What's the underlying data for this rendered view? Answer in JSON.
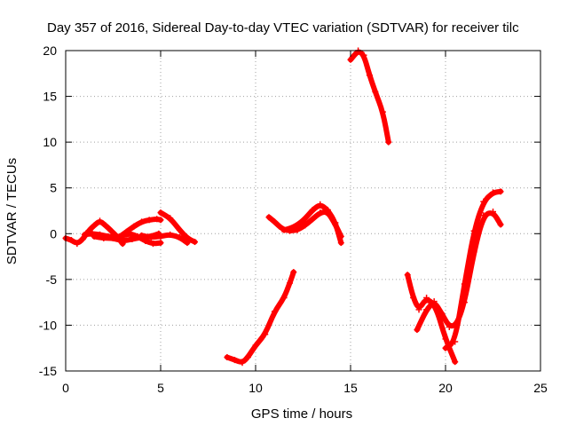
{
  "chart_data": {
    "type": "scatter",
    "title": "Day 357 of 2016, Sidereal Day-to-day VTEC variation (SDTVAR) for receiver tilc",
    "xlabel": "GPS time / hours",
    "ylabel": "SDTVAR / TECUs",
    "xlim": [
      0,
      25
    ],
    "ylim": [
      -15,
      20
    ],
    "xticks": [
      0,
      5,
      10,
      15,
      20,
      25
    ],
    "yticks": [
      -15,
      -10,
      -5,
      0,
      5,
      10,
      15,
      20
    ],
    "grid": true,
    "marker_color": "#ff0000",
    "series": [
      {
        "x": [
          0.0,
          0.3,
          0.6,
          0.9,
          1.2,
          1.5,
          1.8,
          2.1,
          2.4,
          2.7,
          3.0
        ],
        "y": [
          -0.5,
          -0.7,
          -1.1,
          -0.6,
          0.3,
          0.9,
          1.4,
          0.9,
          0.3,
          -0.3,
          -1.1
        ]
      },
      {
        "x": [
          1.0,
          1.4,
          1.8,
          2.2,
          2.6,
          3.0,
          3.4,
          3.8,
          4.2,
          4.6,
          5.0
        ],
        "y": [
          -0.1,
          0.0,
          -0.1,
          -0.3,
          -0.4,
          -0.2,
          0.0,
          -0.3,
          -0.8,
          -1.1,
          -1.0
        ]
      },
      {
        "x": [
          1.5,
          2.0,
          2.5,
          3.0,
          3.5,
          4.0,
          4.5,
          4.9
        ],
        "y": [
          -0.3,
          -0.5,
          -0.5,
          -0.8,
          -0.6,
          -0.4,
          -0.3,
          0.0
        ]
      },
      {
        "x": [
          2.8,
          3.2,
          3.6,
          4.0,
          4.4,
          4.8,
          5.0
        ],
        "y": [
          -0.4,
          0.2,
          0.8,
          1.3,
          1.5,
          1.6,
          1.5
        ]
      },
      {
        "x": [
          5.0,
          5.5,
          6.0,
          6.4,
          6.8
        ],
        "y": [
          2.3,
          1.7,
          0.4,
          -0.5,
          -0.9
        ]
      },
      {
        "x": [
          4.0,
          4.5,
          5.0,
          5.5,
          6.0,
          6.4
        ],
        "y": [
          -0.2,
          -0.4,
          -0.3,
          -0.1,
          -0.4,
          -1.0
        ]
      },
      {
        "x": [
          8.5,
          8.9,
          9.3,
          9.6,
          10.0,
          10.5,
          11.0,
          11.5,
          11.8,
          12.0
        ],
        "y": [
          -13.5,
          -13.8,
          -14.1,
          -13.5,
          -12.2,
          -11.0,
          -8.5,
          -7.0,
          -5.4,
          -4.2
        ]
      },
      {
        "x": [
          10.7,
          11.0,
          11.4,
          11.8,
          12.2,
          12.6,
          13.0,
          13.4,
          13.8,
          14.2,
          14.5
        ],
        "y": [
          1.8,
          1.3,
          0.5,
          0.3,
          0.4,
          0.9,
          1.6,
          2.3,
          2.4,
          1.0,
          -0.3
        ]
      },
      {
        "x": [
          11.5,
          12.0,
          12.5,
          13.0,
          13.4,
          13.8,
          14.2,
          14.5
        ],
        "y": [
          0.4,
          0.7,
          1.4,
          2.6,
          3.2,
          2.6,
          1.2,
          -1.0
        ]
      },
      {
        "x": [
          15.0,
          15.4,
          15.7,
          16.0,
          16.3,
          16.7,
          17.0
        ],
        "y": [
          19.0,
          20.0,
          19.5,
          17.3,
          15.5,
          13.3,
          10.0
        ]
      },
      {
        "x": [
          18.0,
          18.3,
          18.6,
          19.0,
          19.5,
          20.0,
          20.5
        ],
        "y": [
          -4.5,
          -7.0,
          -8.3,
          -7.0,
          -8.0,
          -11.5,
          -14.0
        ]
      },
      {
        "x": [
          18.5,
          19.0,
          19.4,
          19.8,
          20.2,
          20.6,
          21.0,
          21.5,
          22.0,
          22.5,
          22.9
        ],
        "y": [
          -10.5,
          -8.3,
          -7.4,
          -8.7,
          -10.2,
          -9.9,
          -7.5,
          -2.0,
          2.0,
          2.4,
          1.0
        ]
      },
      {
        "x": [
          20.0,
          20.5,
          21.0,
          21.5,
          22.0,
          22.5,
          22.9
        ],
        "y": [
          -12.5,
          -11.8,
          -5.5,
          0.3,
          3.5,
          4.5,
          4.6
        ]
      }
    ]
  }
}
